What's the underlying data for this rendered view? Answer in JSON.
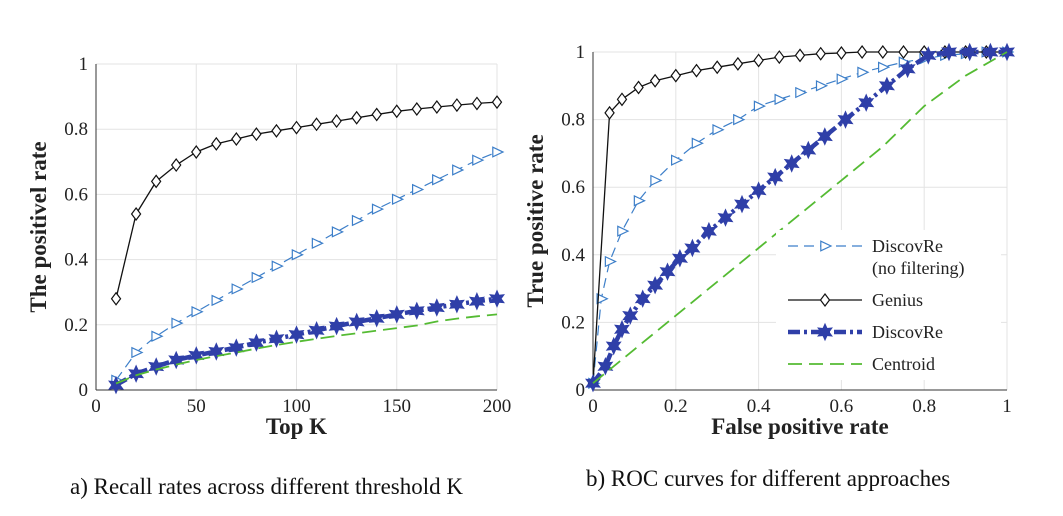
{
  "captions": {
    "a": "a) Recall rates across different threshold K",
    "b": "b) ROC curves for different approaches"
  },
  "colors": {
    "genius": "#111111",
    "discovre_nofilter": "#3d7fc9",
    "discovre": "#2f3fa8",
    "centroid": "#55bb33",
    "grid": "#e3e3e3",
    "axis": "#333333"
  },
  "chart_data": [
    {
      "type": "line",
      "title": "",
      "xlabel": "Top K",
      "ylabel": "The positivel rate",
      "xlim": [
        0,
        200
      ],
      "ylim": [
        0,
        1
      ],
      "x_ticks": [
        "0",
        "50",
        "100",
        "150",
        "200"
      ],
      "y_ticks": [
        "0",
        "0.2",
        "0.4",
        "0.6",
        "0.8",
        "1"
      ],
      "grid": true,
      "legend": "none",
      "x": [
        10,
        20,
        30,
        40,
        50,
        60,
        70,
        80,
        90,
        100,
        110,
        120,
        130,
        140,
        150,
        160,
        170,
        180,
        190,
        200
      ],
      "series": [
        {
          "key": "genius",
          "marker": "diamond",
          "values": [
            0.28,
            0.54,
            0.64,
            0.69,
            0.73,
            0.755,
            0.77,
            0.785,
            0.795,
            0.805,
            0.815,
            0.825,
            0.835,
            0.845,
            0.855,
            0.862,
            0.868,
            0.874,
            0.879,
            0.883
          ]
        },
        {
          "key": "discovre_nofilter",
          "marker": "triangle-right",
          "values": [
            0.03,
            0.115,
            0.165,
            0.205,
            0.24,
            0.275,
            0.31,
            0.345,
            0.38,
            0.415,
            0.45,
            0.485,
            0.52,
            0.555,
            0.585,
            0.615,
            0.645,
            0.675,
            0.705,
            0.73
          ]
        },
        {
          "key": "discovre",
          "marker": "hexagram",
          "values": [
            0.015,
            0.05,
            0.072,
            0.092,
            0.106,
            0.118,
            0.13,
            0.145,
            0.157,
            0.17,
            0.183,
            0.196,
            0.209,
            0.22,
            0.232,
            0.243,
            0.253,
            0.263,
            0.272,
            0.28
          ]
        },
        {
          "key": "centroid",
          "marker": "none",
          "values": [
            0.02,
            0.045,
            0.063,
            0.078,
            0.092,
            0.104,
            0.115,
            0.127,
            0.138,
            0.148,
            0.157,
            0.166,
            0.174,
            0.182,
            0.19,
            0.198,
            0.21,
            0.219,
            0.226,
            0.232
          ]
        }
      ]
    },
    {
      "type": "line",
      "title": "",
      "xlabel": "False positive rate",
      "ylabel": "True positive rate",
      "xlim": [
        0,
        1
      ],
      "ylim": [
        0,
        1
      ],
      "x_ticks": [
        "0",
        "0.2",
        "0.4",
        "0.6",
        "0.8",
        "1"
      ],
      "y_ticks": [
        "0",
        "0.2",
        "0.4",
        "0.6",
        "0.8",
        "1"
      ],
      "grid": true,
      "legend": "bottom-right",
      "series": [
        {
          "key": "discovre_nofilter",
          "name": "DiscovRe\n(no filtering)",
          "legend_lines": [
            "DiscovRe",
            "(no filtering)"
          ],
          "marker": "triangle-right",
          "x": [
            0,
            0.02,
            0.04,
            0.07,
            0.11,
            0.15,
            0.2,
            0.25,
            0.3,
            0.35,
            0.4,
            0.45,
            0.5,
            0.55,
            0.6,
            0.65,
            0.7,
            0.75,
            0.8,
            0.85,
            0.9,
            0.95,
            1.0
          ],
          "y": [
            0.02,
            0.27,
            0.38,
            0.47,
            0.56,
            0.62,
            0.68,
            0.73,
            0.77,
            0.8,
            0.84,
            0.86,
            0.88,
            0.9,
            0.92,
            0.94,
            0.955,
            0.97,
            0.98,
            0.99,
            0.995,
            1.0,
            1.0
          ]
        },
        {
          "key": "genius",
          "name": "Genius",
          "legend_lines": [
            "Genius"
          ],
          "marker": "diamond",
          "x": [
            0,
            0.04,
            0.07,
            0.11,
            0.15,
            0.2,
            0.25,
            0.3,
            0.35,
            0.4,
            0.45,
            0.5,
            0.55,
            0.6,
            0.65,
            0.7,
            0.75,
            0.8,
            0.85,
            0.9,
            0.95,
            1.0
          ],
          "y": [
            0.02,
            0.82,
            0.86,
            0.895,
            0.915,
            0.93,
            0.945,
            0.955,
            0.965,
            0.975,
            0.985,
            0.99,
            0.995,
            0.997,
            1.0,
            1.0,
            1.0,
            1.0,
            1.0,
            1.0,
            1.0,
            1.0
          ]
        },
        {
          "key": "discovre",
          "name": "DiscovRe",
          "legend_lines": [
            "DiscovRe"
          ],
          "marker": "hexagram",
          "x": [
            0,
            0.03,
            0.05,
            0.07,
            0.09,
            0.12,
            0.15,
            0.18,
            0.21,
            0.24,
            0.28,
            0.32,
            0.36,
            0.4,
            0.44,
            0.48,
            0.52,
            0.56,
            0.61,
            0.66,
            0.71,
            0.76,
            0.81,
            0.86,
            0.91,
            0.96,
            1.0
          ],
          "y": [
            0.02,
            0.07,
            0.13,
            0.18,
            0.22,
            0.27,
            0.31,
            0.35,
            0.39,
            0.42,
            0.47,
            0.51,
            0.55,
            0.59,
            0.63,
            0.67,
            0.71,
            0.75,
            0.8,
            0.85,
            0.9,
            0.95,
            0.99,
            1.0,
            1.0,
            1.0,
            1.0
          ]
        },
        {
          "key": "centroid",
          "name": "Centroid",
          "legend_lines": [
            "Centroid"
          ],
          "marker": "none",
          "x": [
            0,
            0.1,
            0.2,
            0.3,
            0.4,
            0.5,
            0.6,
            0.7,
            0.8,
            0.9,
            1.0
          ],
          "y": [
            0.02,
            0.12,
            0.22,
            0.32,
            0.42,
            0.52,
            0.62,
            0.72,
            0.84,
            0.93,
            1.0
          ]
        }
      ]
    }
  ]
}
